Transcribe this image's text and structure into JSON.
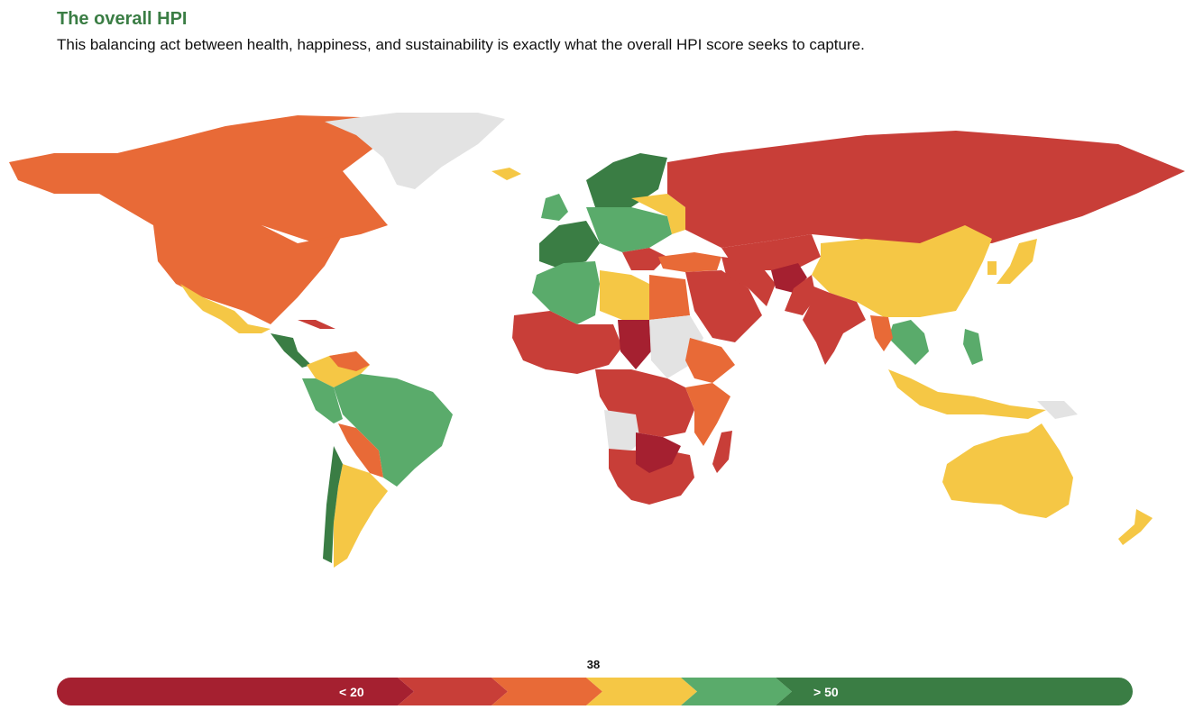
{
  "header": {
    "title": "The overall HPI",
    "subtitle": "This balancing act between health, happiness, and sustainability is exactly what the overall HPI score seeks to capture."
  },
  "colors": {
    "title": "#3a7d44",
    "band_1": "#a52030",
    "band_2": "#c83e38",
    "band_3": "#e86a37",
    "band_4": "#f5c745",
    "band_5": "#5aab6b",
    "band_6": "#3a7d44",
    "no_data": "#e3e3e3"
  },
  "legend": {
    "marker_value": "38",
    "low_label": "< 20",
    "high_label": "> 50"
  }
}
